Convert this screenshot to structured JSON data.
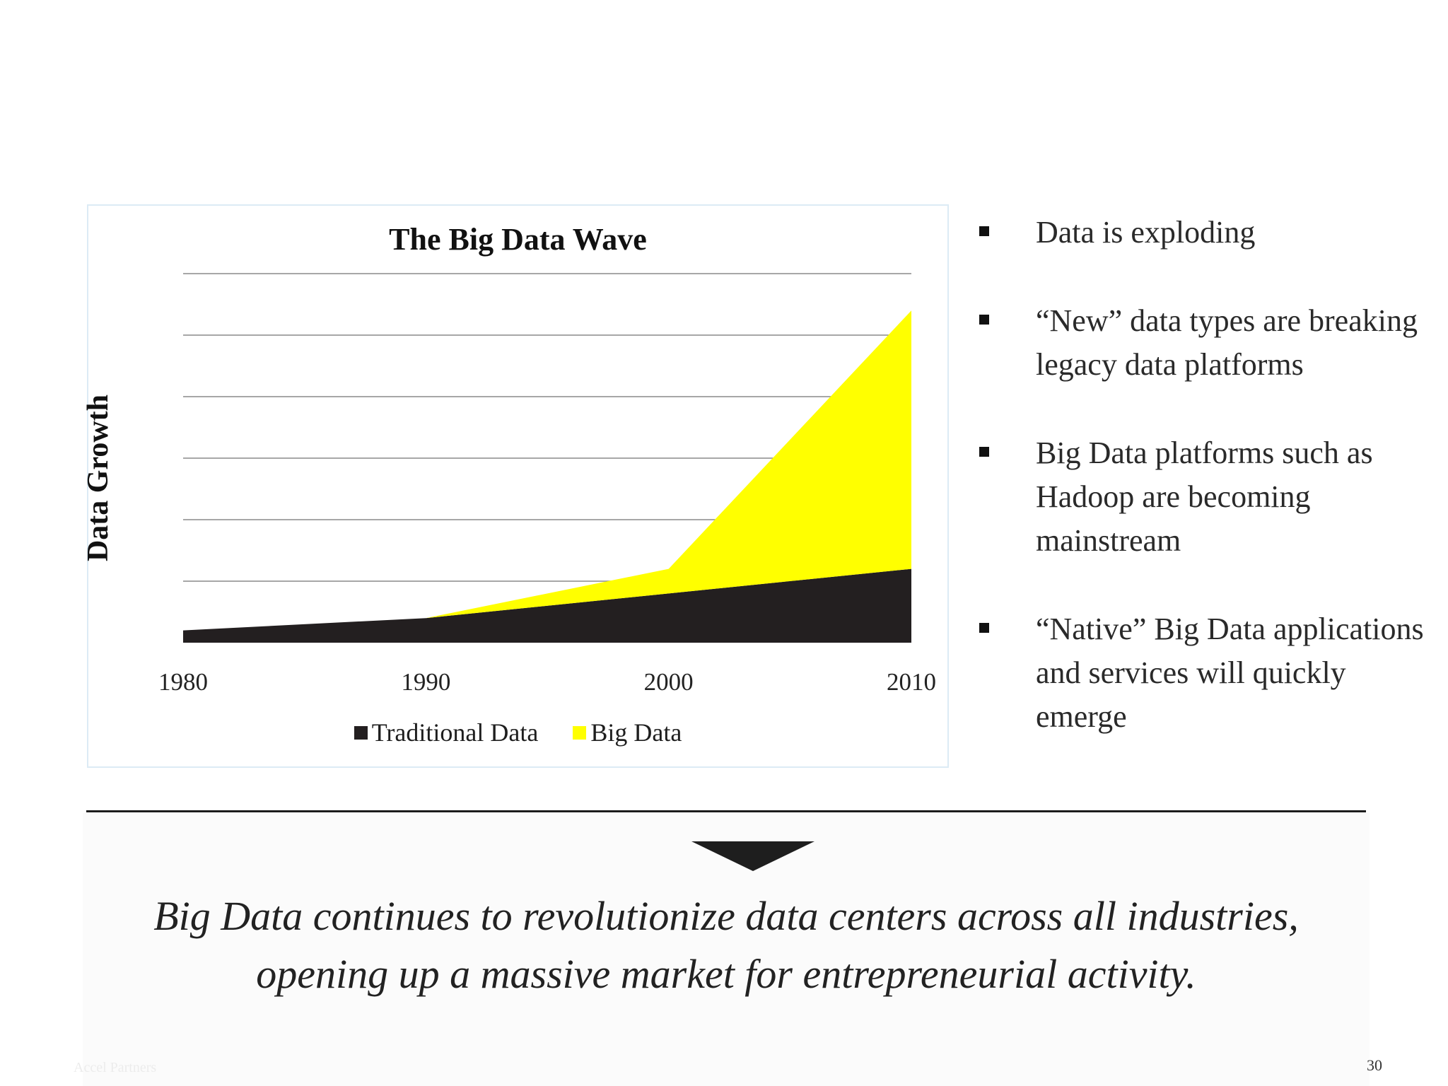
{
  "chart_data": {
    "type": "area",
    "title": "The Big Data Wave",
    "ylabel": "Data Growth",
    "xlabel": "",
    "categories": [
      "1980",
      "1990",
      "2000",
      "2010"
    ],
    "stacked": true,
    "grid": true,
    "ylim": [
      0,
      6
    ],
    "series": [
      {
        "name": "Traditional Data",
        "color": "#231f20",
        "values": [
          0.2,
          0.4,
          0.8,
          1.2
        ]
      },
      {
        "name": "Big Data",
        "color": "#ffff00",
        "values": [
          0,
          0,
          0.4,
          4.2
        ]
      }
    ],
    "legend_position": "bottom"
  },
  "bullets": [
    "Data is exploding",
    "“New” data types are breaking legacy data platforms",
    "Big Data platforms such as Hadoop are becoming mainstream",
    "“Native” Big Data applications and services will quickly emerge"
  ],
  "conclusion": "Big Data continues to revolutionize data centers across all industries, opening up a massive market for entrepreneurial activity.",
  "footer": {
    "company": "Accel Partners",
    "page_number": "30"
  }
}
